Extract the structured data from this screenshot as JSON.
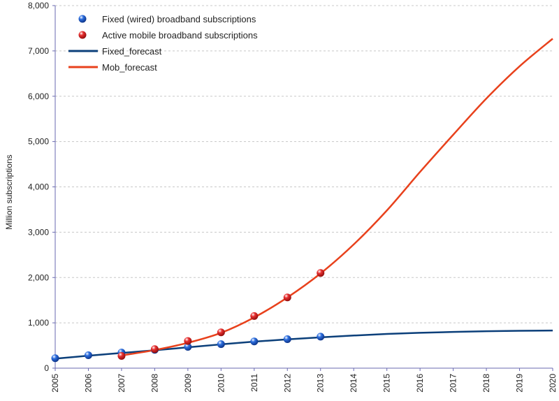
{
  "chart_data": {
    "type": "line",
    "title": "",
    "xlabel": "",
    "ylabel": "Million subscriptions",
    "xlim": [
      2005,
      2020
    ],
    "ylim": [
      0,
      8000
    ],
    "y_ticks": [
      0,
      1000,
      2000,
      3000,
      4000,
      5000,
      6000,
      7000,
      8000
    ],
    "y_tick_labels": [
      "0",
      "1,000",
      "2,000",
      "3,000",
      "4,000",
      "5,000",
      "6,000",
      "7,000",
      "8,000"
    ],
    "x_ticks": [
      2005,
      2006,
      2007,
      2008,
      2009,
      2010,
      2011,
      2012,
      2013,
      2014,
      2015,
      2016,
      2017,
      2018,
      2019,
      2020
    ],
    "x_tick_labels": [
      "2005",
      "2006",
      "2007",
      "2008",
      "2009",
      "2010",
      "2011",
      "2012",
      "2013",
      "2014",
      "2015",
      "2016",
      "2017",
      "2018",
      "2019",
      "2020"
    ],
    "grid": true,
    "legend_position": "top-left",
    "series": [
      {
        "name": "Fixed (wired) broadband subscriptions",
        "kind": "points",
        "marker": "sphere",
        "color": "#1f5fd0",
        "x": [
          2005,
          2006,
          2007,
          2008,
          2009,
          2010,
          2011,
          2012,
          2013
        ],
        "values": [
          220,
          285,
          345,
          405,
          470,
          530,
          590,
          640,
          695
        ]
      },
      {
        "name": "Active mobile broadband subscriptions",
        "kind": "points",
        "marker": "sphere",
        "color": "#d62020",
        "x": [
          2007,
          2008,
          2009,
          2010,
          2011,
          2012,
          2013
        ],
        "values": [
          270,
          420,
          600,
          790,
          1150,
          1560,
          2100
        ]
      },
      {
        "name": "Fixed_forecast",
        "kind": "line",
        "color": "#0b3f7a",
        "x": [
          2005,
          2006,
          2007,
          2008,
          2009,
          2010,
          2011,
          2012,
          2013,
          2014,
          2015,
          2016,
          2017,
          2018,
          2019,
          2020
        ],
        "values": [
          210,
          275,
          335,
          395,
          460,
          525,
          585,
          635,
          680,
          720,
          755,
          780,
          800,
          815,
          825,
          830
        ]
      },
      {
        "name": "Mob_forecast",
        "kind": "line",
        "color": "#e8411c",
        "x": [
          2007,
          2008,
          2009,
          2010,
          2011,
          2012,
          2013,
          2014,
          2015,
          2016,
          2017,
          2018,
          2019,
          2020
        ],
        "values": [
          280,
          400,
          560,
          780,
          1120,
          1560,
          2090,
          2730,
          3480,
          4330,
          5150,
          5950,
          6660,
          7270
        ]
      }
    ]
  }
}
